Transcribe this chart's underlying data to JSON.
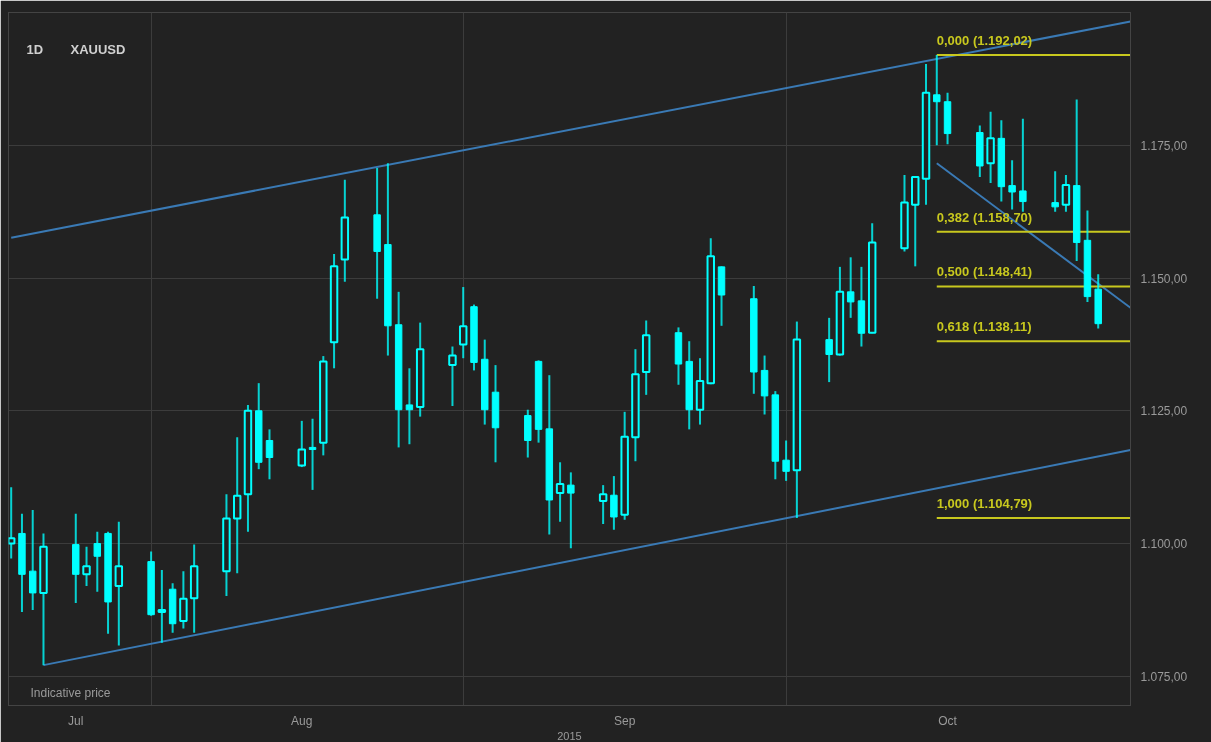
{
  "chart_data": {
    "type": "candlestick",
    "title": "XAUUSD",
    "subtitle": "1D",
    "xlabel": "2015",
    "annotations": [
      "Indicative price"
    ],
    "color": "#00ffff",
    "x": [
      "2015-07-21",
      "2015-07-22",
      "2015-07-23",
      "2015-07-24",
      "2015-07-27",
      "2015-07-28",
      "2015-07-29",
      "2015-07-30",
      "2015-07-31",
      "2015-08-03",
      "2015-08-04",
      "2015-08-05",
      "2015-08-06",
      "2015-08-07",
      "2015-08-10",
      "2015-08-11",
      "2015-08-12",
      "2015-08-13",
      "2015-08-14",
      "2015-08-17",
      "2015-08-18",
      "2015-08-19",
      "2015-08-20",
      "2015-08-21",
      "2015-08-24",
      "2015-08-25",
      "2015-08-26",
      "2015-08-27",
      "2015-08-28",
      "2015-08-31",
      "2015-09-01",
      "2015-09-02",
      "2015-09-03",
      "2015-09-04",
      "2015-09-07",
      "2015-09-08",
      "2015-09-09",
      "2015-09-10",
      "2015-09-11",
      "2015-09-14",
      "2015-09-15",
      "2015-09-16",
      "2015-09-17",
      "2015-09-18",
      "2015-09-21",
      "2015-09-22",
      "2015-09-23",
      "2015-09-24",
      "2015-09-25",
      "2015-09-28",
      "2015-09-29",
      "2015-09-30",
      "2015-10-01",
      "2015-10-02",
      "2015-10-05",
      "2015-10-06",
      "2015-10-07",
      "2015-10-08",
      "2015-10-09",
      "2015-10-12",
      "2015-10-13",
      "2015-10-14",
      "2015-10-15",
      "2015-10-16",
      "2015-10-19",
      "2015-10-20",
      "2015-10-21",
      "2015-10-22",
      "2015-10-23",
      "2015-10-26",
      "2015-10-27",
      "2015-10-28",
      "2015-10-29",
      "2015-10-30"
    ],
    "ohlc": [
      [
        1100.0,
        1110.6,
        1097.2,
        1101.0
      ],
      [
        1101.9,
        1105.6,
        1087.1,
        1094.2
      ],
      [
        1094.8,
        1106.3,
        1087.5,
        1090.7
      ],
      [
        1090.7,
        1101.9,
        1077.1,
        1099.4
      ],
      [
        1099.8,
        1105.6,
        1088.8,
        1094.2
      ],
      [
        1094.2,
        1099.4,
        1092.0,
        1095.7
      ],
      [
        1100.0,
        1102.2,
        1090.9,
        1097.6
      ],
      [
        1101.9,
        1102.2,
        1083.0,
        1089.0
      ],
      [
        1092.0,
        1104.1,
        1080.8,
        1095.7
      ],
      [
        1096.6,
        1098.5,
        1086.4,
        1086.6
      ],
      [
        1087.1,
        1095.0,
        1081.3,
        1087.5
      ],
      [
        1091.4,
        1092.5,
        1083.2,
        1084.9
      ],
      [
        1085.4,
        1094.8,
        1084.0,
        1089.6
      ],
      [
        1089.7,
        1099.8,
        1083.2,
        1095.7
      ],
      [
        1094.8,
        1109.3,
        1090.1,
        1104.7
      ],
      [
        1104.7,
        1120.0,
        1094.4,
        1109.0
      ],
      [
        1109.3,
        1126.1,
        1102.2,
        1125.0
      ],
      [
        1125.0,
        1130.2,
        1114.0,
        1115.3
      ],
      [
        1119.4,
        1121.5,
        1112.1,
        1116.2
      ],
      [
        1114.7,
        1123.1,
        1114.4,
        1117.7
      ],
      [
        1118.1,
        1123.5,
        1110.1,
        1117.7
      ],
      [
        1119.0,
        1135.3,
        1116.6,
        1134.3
      ],
      [
        1137.9,
        1154.5,
        1133.0,
        1152.2
      ],
      [
        1153.5,
        1168.5,
        1149.3,
        1161.4
      ],
      [
        1161.9,
        1170.7,
        1146.1,
        1155.0
      ],
      [
        1156.3,
        1171.6,
        1135.4,
        1141.0
      ],
      [
        1141.2,
        1147.4,
        1118.1,
        1125.2
      ],
      [
        1126.1,
        1133.0,
        1118.7,
        1125.2
      ],
      [
        1125.7,
        1141.6,
        1123.9,
        1136.6
      ],
      [
        1133.6,
        1137.1,
        1125.9,
        1135.4
      ],
      [
        1137.5,
        1148.3,
        1134.9,
        1140.9
      ],
      [
        1144.6,
        1145.0,
        1132.6,
        1134.1
      ],
      [
        1134.7,
        1138.4,
        1122.4,
        1125.2
      ],
      [
        1128.5,
        1133.6,
        1115.3,
        1121.8
      ],
      [
        1124.1,
        1125.2,
        1116.2,
        1119.4
      ],
      [
        1134.3,
        1134.5,
        1119.0,
        1121.5
      ],
      [
        1121.6,
        1131.7,
        1101.7,
        1108.2
      ],
      [
        1109.5,
        1115.3,
        1104.1,
        1111.2
      ],
      [
        1111.0,
        1113.4,
        1099.1,
        1109.5
      ],
      [
        1108.0,
        1111.0,
        1103.7,
        1109.3
      ],
      [
        1109.1,
        1112.7,
        1102.6,
        1105.0
      ],
      [
        1105.4,
        1124.8,
        1104.5,
        1120.1
      ],
      [
        1120.0,
        1136.6,
        1115.5,
        1131.9
      ],
      [
        1132.3,
        1142.0,
        1128.0,
        1139.2
      ],
      [
        1139.7,
        1140.7,
        1129.9,
        1133.8
      ],
      [
        1134.3,
        1138.1,
        1121.5,
        1125.2
      ],
      [
        1125.2,
        1134.9,
        1122.4,
        1130.6
      ],
      [
        1130.2,
        1157.5,
        1130.0,
        1154.1
      ],
      [
        1152.1,
        1152.2,
        1141.0,
        1146.8
      ],
      [
        1146.1,
        1148.5,
        1128.2,
        1132.3
      ],
      [
        1132.6,
        1135.4,
        1124.3,
        1127.8
      ],
      [
        1128.0,
        1128.7,
        1112.1,
        1115.5
      ],
      [
        1115.7,
        1119.4,
        1111.8,
        1113.6
      ],
      [
        1113.8,
        1141.8,
        1104.8,
        1138.4
      ],
      [
        1138.4,
        1142.5,
        1130.4,
        1135.6
      ],
      [
        1135.6,
        1152.1,
        1135.4,
        1147.4
      ],
      [
        1147.4,
        1153.9,
        1142.5,
        1145.5
      ],
      [
        1145.7,
        1152.1,
        1137.1,
        1139.6
      ],
      [
        1139.7,
        1160.3,
        1139.6,
        1156.7
      ],
      [
        1155.6,
        1169.4,
        1155.0,
        1164.2
      ],
      [
        1163.8,
        1169.2,
        1152.2,
        1169.0
      ],
      [
        1168.7,
        1190.3,
        1163.8,
        1184.9
      ],
      [
        1184.5,
        1192.0,
        1175.0,
        1183.2
      ],
      [
        1183.2,
        1184.9,
        1175.2,
        1177.2
      ],
      [
        1177.4,
        1178.7,
        1169.0,
        1171.1
      ],
      [
        1171.6,
        1181.3,
        1167.9,
        1176.3
      ],
      [
        1176.3,
        1179.7,
        1164.4,
        1167.2
      ],
      [
        1167.4,
        1172.2,
        1162.9,
        1166.2
      ],
      [
        1166.4,
        1180.0,
        1162.5,
        1164.4
      ],
      [
        1164.2,
        1170.1,
        1162.5,
        1163.4
      ],
      [
        1163.8,
        1169.4,
        1162.5,
        1167.5
      ],
      [
        1167.4,
        1183.6,
        1153.2,
        1156.7
      ],
      [
        1157.1,
        1162.7,
        1145.5,
        1146.5
      ],
      [
        1147.9,
        1150.7,
        1140.5,
        1141.4
      ]
    ],
    "series": [
      {
        "type": "line",
        "color": "#3a7ab5",
        "x": [
          "2015-07-21",
          "2015-11-02"
        ],
        "values": [
          1157.6,
          1198.3
        ]
      },
      {
        "type": "line",
        "color": "#3a7ab5",
        "x": [
          "2015-07-24",
          "2015-11-02"
        ],
        "values": [
          1077.1,
          1117.6
        ]
      },
      {
        "type": "line",
        "color": "#3a7ab5",
        "x": [
          "2015-10-15",
          "2015-11-02"
        ],
        "values": [
          1171.6,
          1144.4
        ]
      }
    ],
    "ref_lines": [
      {
        "axis": "y",
        "value": 1192.02,
        "label": "0,000 (1.192,02)",
        "color": "#c8c81e"
      },
      {
        "axis": "y",
        "value": 1158.7,
        "label": "0,382 (1.158,70)",
        "color": "#c8c81e"
      },
      {
        "axis": "y",
        "value": 1148.41,
        "label": "0,500 (1.148,41)",
        "color": "#c8c81e"
      },
      {
        "axis": "y",
        "value": 1138.11,
        "label": "0,618 (1.138,11)",
        "color": "#c8c81e"
      },
      {
        "axis": "y",
        "value": 1104.79,
        "label": "1,000 (1.104,79)",
        "color": "#c8c81e"
      }
    ],
    "xlim": [
      "2015-07-20T18:00",
      "2015-11-02"
    ],
    "xticks": [
      {
        "value": "2015-08-03",
        "label": null
      },
      {
        "value": "2015-09-01",
        "label": null
      },
      {
        "value": "2015-10-01",
        "label": null
      },
      {
        "value": "2015-07-27",
        "label": "Jul"
      },
      {
        "value": "2015-08-17",
        "label": "Aug"
      },
      {
        "value": "2015-09-16",
        "label": "Sep"
      },
      {
        "value": "2015-10-16",
        "label": "Oct"
      }
    ],
    "ylim": [
      1069.5,
      1200
    ],
    "yticks": [
      {
        "value": 1075,
        "label": "1.075,00"
      },
      {
        "value": 1100,
        "label": "1.100,00"
      },
      {
        "value": 1125,
        "label": "1.125,00"
      },
      {
        "value": 1150,
        "label": "1.150,00"
      },
      {
        "value": 1175,
        "label": "1.175,00"
      }
    ],
    "grid": true
  }
}
